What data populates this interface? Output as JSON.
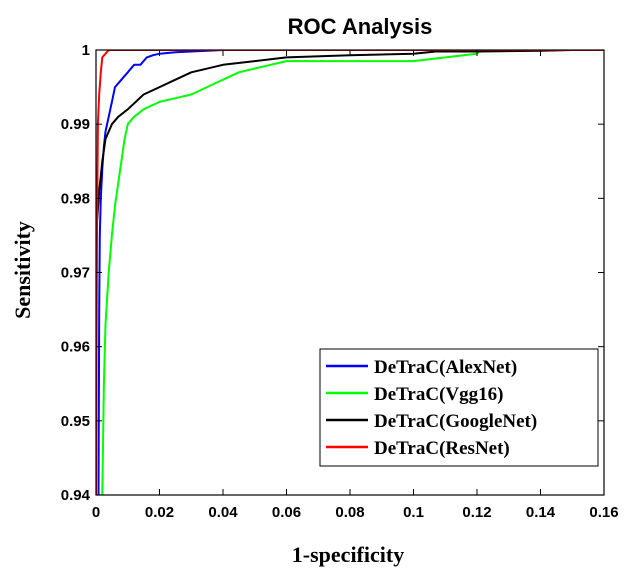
{
  "chart_data": {
    "type": "line",
    "title": "ROC Analysis",
    "xlabel": "1-specificity",
    "ylabel": "Sensitivity",
    "xlim": [
      0,
      0.16
    ],
    "ylim": [
      0.94,
      1
    ],
    "xticks": [
      0,
      0.02,
      0.04,
      0.06,
      0.08,
      0.1,
      0.12,
      0.14,
      0.16
    ],
    "xtick_labels": [
      "0",
      "0.02",
      "0.04",
      "0.06",
      "0.08",
      "0.1",
      "0.12",
      "0.14",
      "0.16"
    ],
    "yticks": [
      0.94,
      0.95,
      0.96,
      0.97,
      0.98,
      0.99,
      1
    ],
    "ytick_labels": [
      "0.94",
      "0.95",
      "0.96",
      "0.97",
      "0.98",
      "0.99",
      "1"
    ],
    "grid": false,
    "legend_position": "bottom-right",
    "series": [
      {
        "name": "DeTraC(AlexNet)",
        "color": "#0000ff",
        "x": [
          0.0008,
          0.001,
          0.0012,
          0.0015,
          0.002,
          0.0025,
          0.003,
          0.004,
          0.005,
          0.006,
          0.008,
          0.01,
          0.012,
          0.014,
          0.016,
          0.018,
          0.02,
          0.025,
          0.03,
          0.035,
          0.04,
          0.045,
          0.16
        ],
        "y": [
          0.94,
          0.965,
          0.975,
          0.98,
          0.984,
          0.987,
          0.989,
          0.991,
          0.993,
          0.995,
          0.996,
          0.997,
          0.998,
          0.998,
          0.999,
          0.9993,
          0.9995,
          0.9997,
          0.9998,
          0.9999,
          1.0,
          1.0,
          1.0
        ]
      },
      {
        "name": "DeTraC(Vgg16)",
        "color": "#00ff00",
        "x": [
          0.002,
          0.0025,
          0.003,
          0.004,
          0.005,
          0.006,
          0.007,
          0.008,
          0.009,
          0.01,
          0.012,
          0.015,
          0.02,
          0.025,
          0.03,
          0.035,
          0.04,
          0.045,
          0.05,
          0.055,
          0.06,
          0.08,
          0.1,
          0.11,
          0.12,
          0.121,
          0.16
        ],
        "y": [
          0.94,
          0.955,
          0.963,
          0.97,
          0.975,
          0.979,
          0.982,
          0.985,
          0.988,
          0.99,
          0.991,
          0.992,
          0.993,
          0.9935,
          0.994,
          0.995,
          0.996,
          0.997,
          0.9975,
          0.998,
          0.9985,
          0.9985,
          0.9985,
          0.999,
          0.9995,
          1.0,
          1.0
        ]
      },
      {
        "name": "DeTraC(GoogleNet)",
        "color": "#000000",
        "x": [
          0.0,
          0.0005,
          0.001,
          0.0015,
          0.002,
          0.003,
          0.004,
          0.005,
          0.007,
          0.01,
          0.015,
          0.02,
          0.025,
          0.03,
          0.04,
          0.05,
          0.06,
          0.08,
          0.1,
          0.107,
          0.12,
          0.14,
          0.15,
          0.16
        ],
        "y": [
          0.975,
          0.978,
          0.981,
          0.983,
          0.985,
          0.988,
          0.989,
          0.99,
          0.991,
          0.992,
          0.994,
          0.995,
          0.996,
          0.997,
          0.998,
          0.9985,
          0.999,
          0.9993,
          0.9995,
          0.9998,
          0.9998,
          0.9999,
          1.0,
          1.0
        ]
      },
      {
        "name": "DeTraC(ResNet)",
        "color": "#ff0000",
        "x": [
          0.0,
          0.0003,
          0.0006,
          0.001,
          0.0015,
          0.002,
          0.003,
          0.004,
          0.16
        ],
        "y": [
          0.94,
          0.975,
          0.99,
          0.994,
          0.997,
          0.999,
          0.9995,
          1.0,
          1.0
        ]
      }
    ]
  }
}
